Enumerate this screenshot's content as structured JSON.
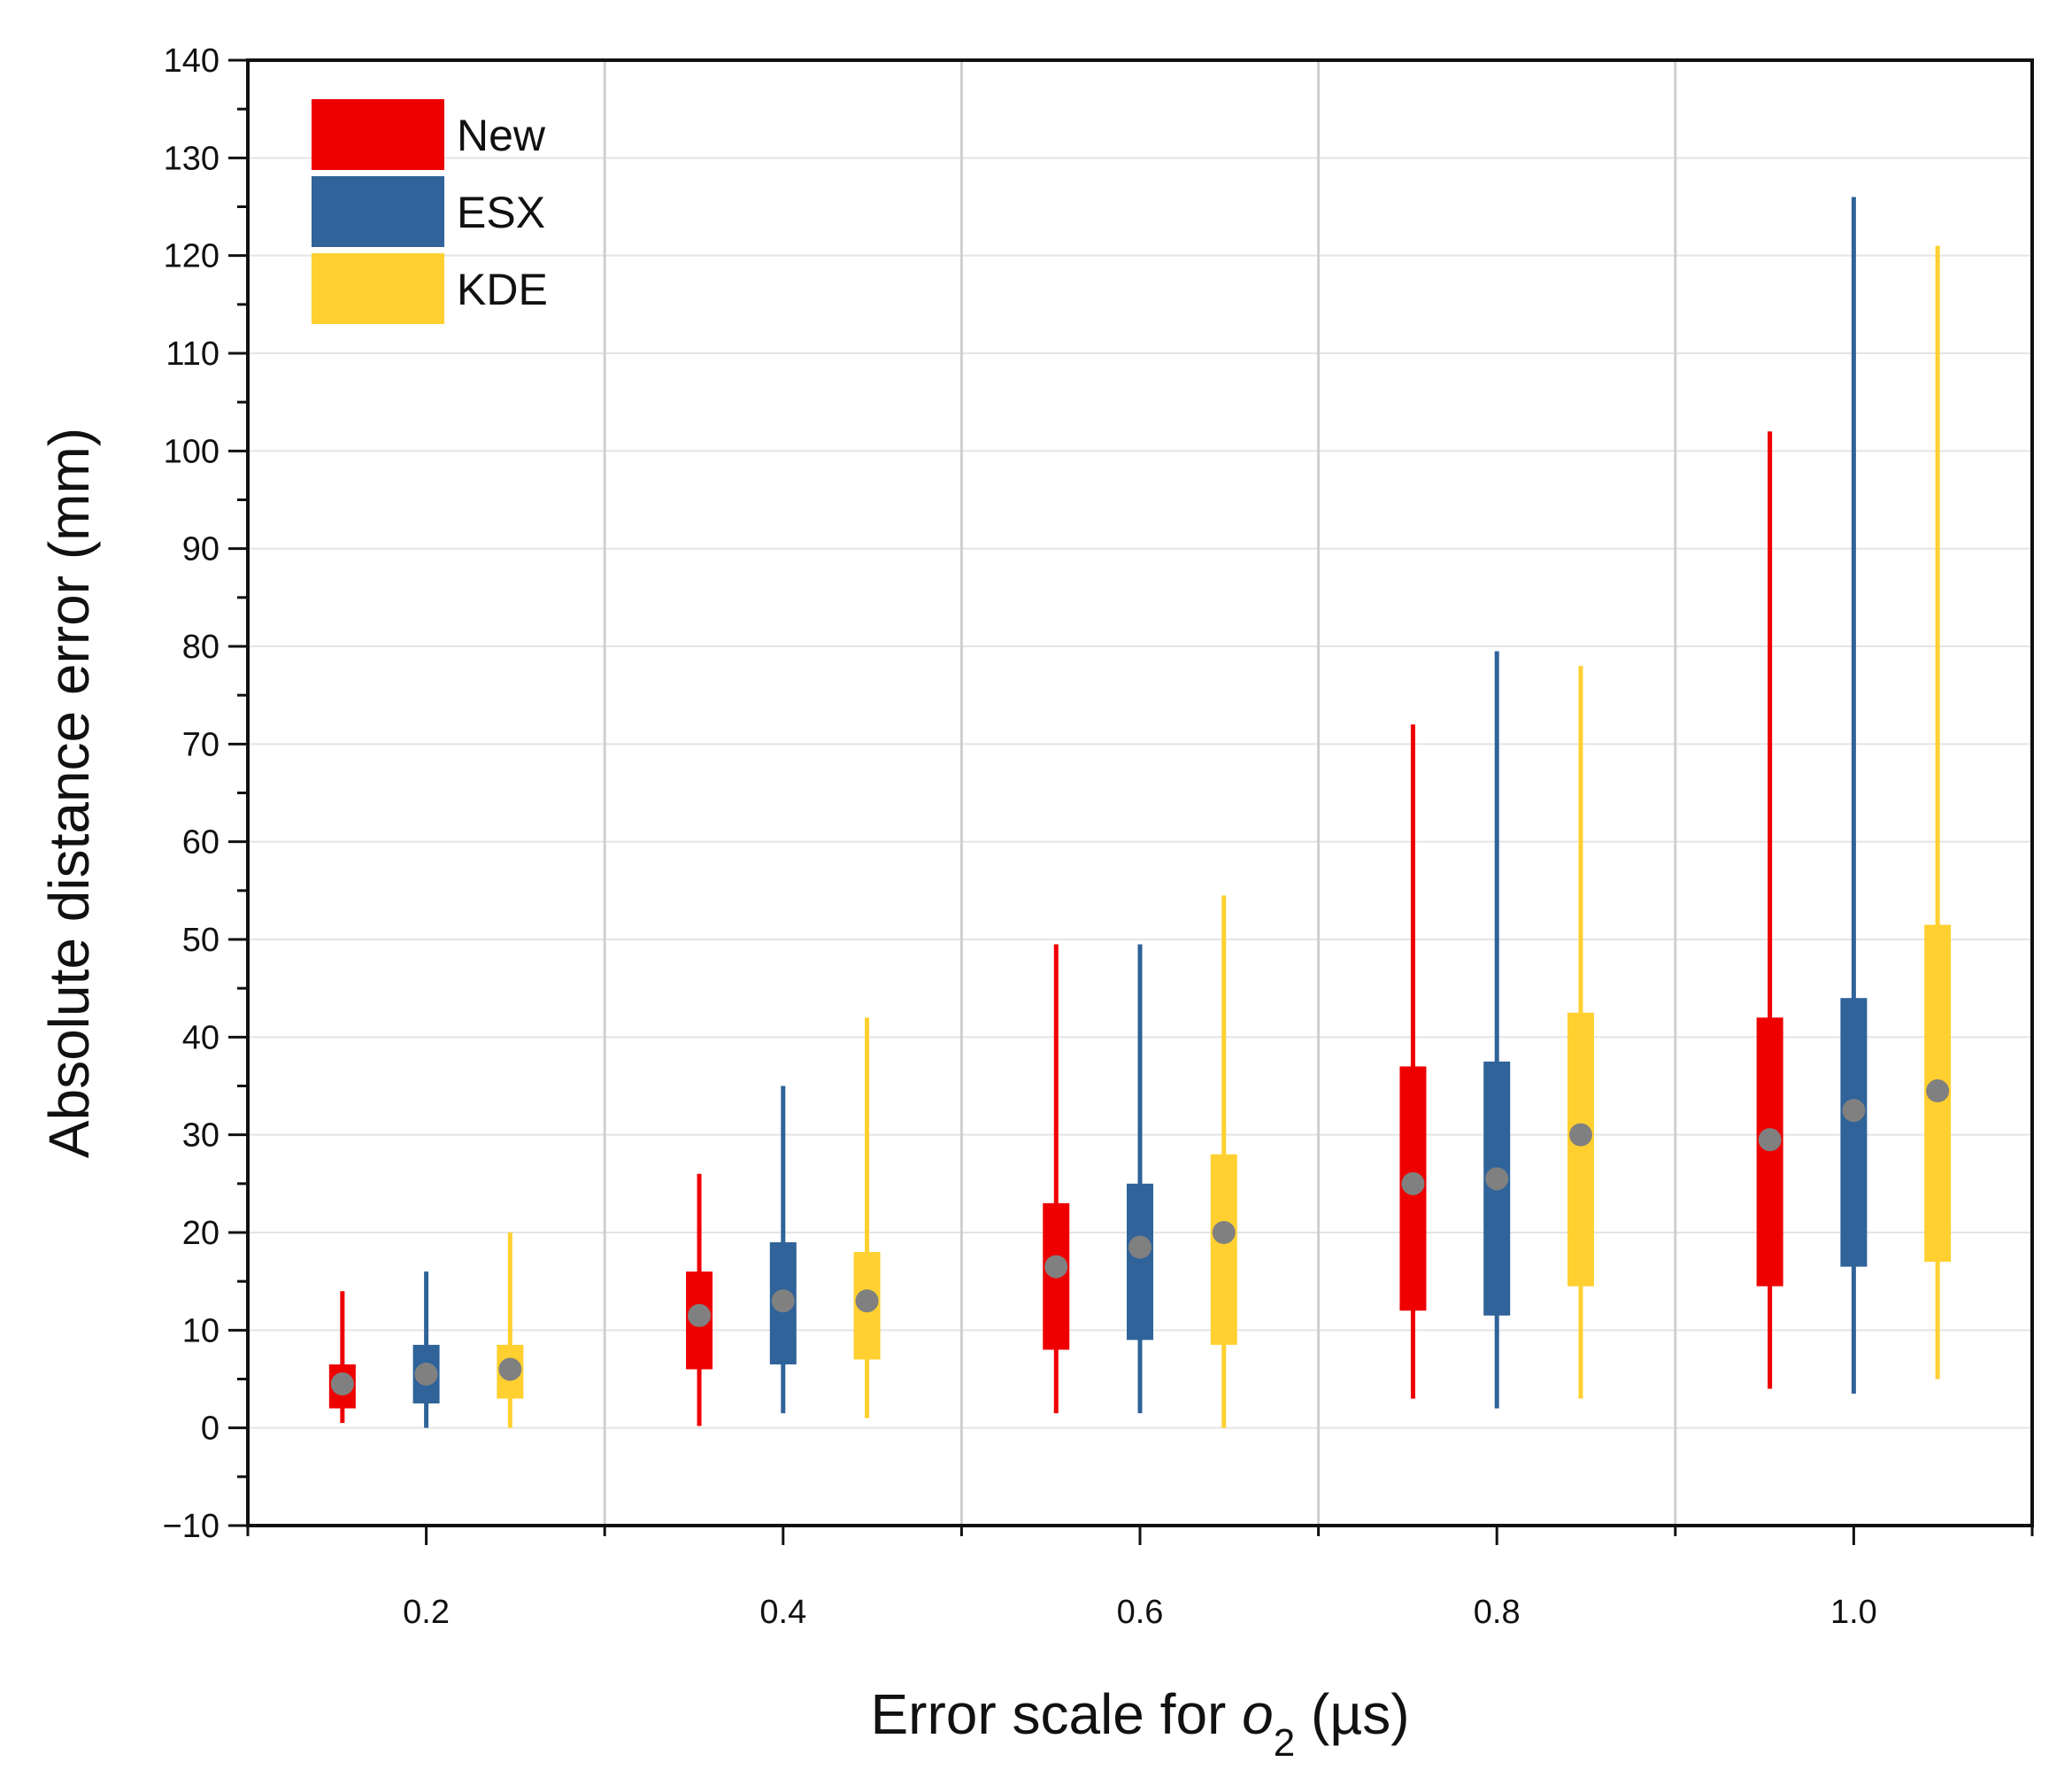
{
  "chart_data": {
    "type": "boxplot",
    "title": "",
    "xlabel_prefix": "Error scale for ",
    "xlabel_var": "o",
    "xlabel_sub": "2",
    "xlabel_suffix": " (µs)",
    "ylabel": "Absolute distance error (mm)",
    "ylim": [
      -10,
      140
    ],
    "yticks": [
      "−10",
      "0",
      "10",
      "20",
      "30",
      "40",
      "50",
      "60",
      "70",
      "80",
      "90",
      "100",
      "110",
      "120",
      "130",
      "140"
    ],
    "ytick_values": [
      -10,
      0,
      10,
      20,
      30,
      40,
      50,
      60,
      70,
      80,
      90,
      100,
      110,
      120,
      130,
      140
    ],
    "categories": [
      "0.2",
      "0.4",
      "0.6",
      "0.8",
      "1.0"
    ],
    "grid": true,
    "legend_position": "top-left",
    "series": [
      {
        "name": "New",
        "color": "#ee0000",
        "boxes": [
          {
            "whisker_low": 0.5,
            "q1": 2,
            "median": 4.5,
            "q3": 6.5,
            "whisker_high": 14
          },
          {
            "whisker_low": 0.2,
            "q1": 6,
            "median": 11.5,
            "q3": 16,
            "whisker_high": 26
          },
          {
            "whisker_low": 1.5,
            "q1": 8,
            "median": 16.5,
            "q3": 23,
            "whisker_high": 49.5
          },
          {
            "whisker_low": 3,
            "q1": 12,
            "median": 25,
            "q3": 37,
            "whisker_high": 72
          },
          {
            "whisker_low": 4,
            "q1": 14.5,
            "median": 29.5,
            "q3": 42,
            "whisker_high": 102
          }
        ]
      },
      {
        "name": "ESX",
        "color": "#2f6399",
        "boxes": [
          {
            "whisker_low": 0,
            "q1": 2.5,
            "median": 5.5,
            "q3": 8.5,
            "whisker_high": 16
          },
          {
            "whisker_low": 1.5,
            "q1": 6.5,
            "median": 13,
            "q3": 19,
            "whisker_high": 35
          },
          {
            "whisker_low": 1.5,
            "q1": 9,
            "median": 18.5,
            "q3": 25,
            "whisker_high": 49.5
          },
          {
            "whisker_low": 2,
            "q1": 11.5,
            "median": 25.5,
            "q3": 37.5,
            "whisker_high": 79.5
          },
          {
            "whisker_low": 3.5,
            "q1": 16.5,
            "median": 32.5,
            "q3": 44,
            "whisker_high": 126
          }
        ]
      },
      {
        "name": "KDE",
        "color": "#ffd030",
        "boxes": [
          {
            "whisker_low": 0,
            "q1": 3,
            "median": 6,
            "q3": 8.5,
            "whisker_high": 20
          },
          {
            "whisker_low": 1,
            "q1": 7,
            "median": 13,
            "q3": 18,
            "whisker_high": 42
          },
          {
            "whisker_low": 0,
            "q1": 8.5,
            "median": 20,
            "q3": 28,
            "whisker_high": 54.5
          },
          {
            "whisker_low": 3,
            "q1": 14.5,
            "median": 30,
            "q3": 42.5,
            "whisker_high": 78
          },
          {
            "whisker_low": 5,
            "q1": 17,
            "median": 34.5,
            "q3": 51.5,
            "whisker_high": 121
          }
        ]
      }
    ],
    "median_marker_color": "#808080"
  }
}
